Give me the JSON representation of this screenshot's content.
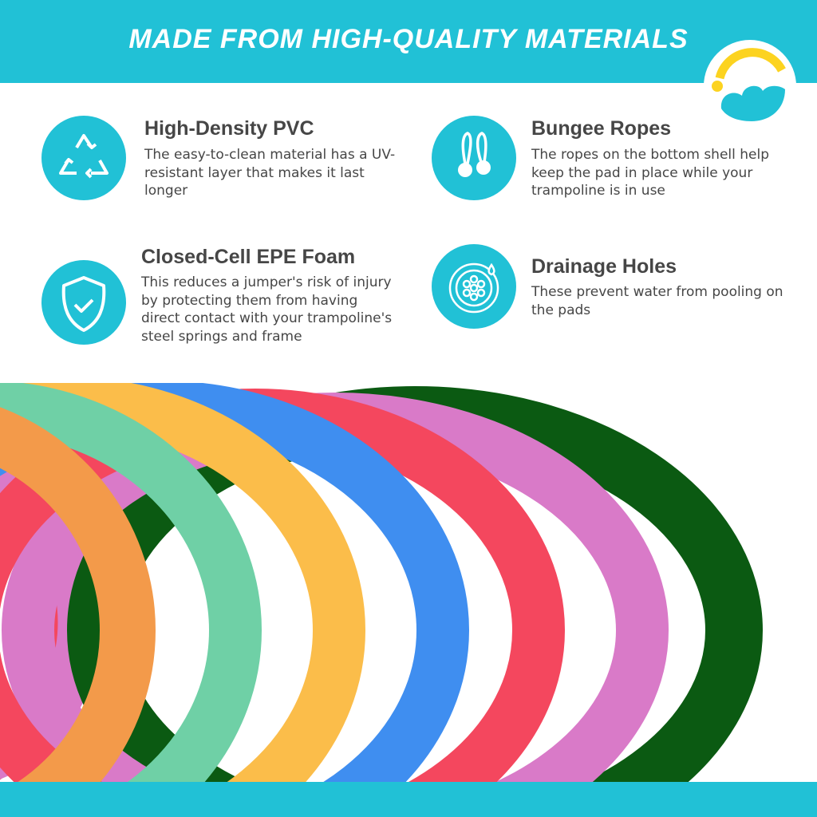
{
  "header": {
    "title": "MADE FROM HIGH-QUALITY MATERIALS"
  },
  "colors": {
    "brand": "#21c1d6",
    "logo_arc": "#fcd320",
    "text": "#464646"
  },
  "features": [
    {
      "title": "High-Density PVC",
      "description": "The easy-to-clean material has a UV-resistant layer that makes it last longer",
      "icon": "recycle-icon"
    },
    {
      "title": "Bungee Ropes",
      "description": "The ropes on the bottom shell help keep the pad in place while your trampoline is in use",
      "icon": "bungee-rope-icon"
    },
    {
      "title": "Closed-Cell EPE Foam",
      "description": "This reduces a jumper's risk of injury by protecting them from having direct contact with your trampoline's steel springs and frame",
      "icon": "shield-check-icon"
    },
    {
      "title": "Drainage Holes",
      "description": "These prevent water from pooling on the pads",
      "icon": "drainage-holes-icon"
    }
  ],
  "pad_colors": [
    "#0b5a12",
    "#d97ac8",
    "#f4475e",
    "#3f8ef0",
    "#fbbd4a",
    "#6fd0a6",
    "#f39a4a"
  ]
}
